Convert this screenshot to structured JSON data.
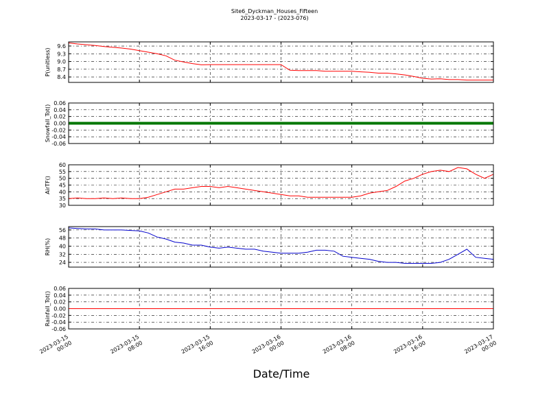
{
  "title": "Site6_Dyckman_Houses_Fifteen",
  "subtitle": "2023-03-17 - (2023-076)",
  "xlabel": "Date/Time",
  "x": [
    "2023-03-15 00:00",
    "2023-03-15 01:00",
    "2023-03-15 02:00",
    "2023-03-15 03:00",
    "2023-03-15 04:00",
    "2023-03-15 05:00",
    "2023-03-15 06:00",
    "2023-03-15 07:00",
    "2023-03-15 08:00",
    "2023-03-15 09:00",
    "2023-03-15 10:00",
    "2023-03-15 11:00",
    "2023-03-15 12:00",
    "2023-03-15 13:00",
    "2023-03-15 14:00",
    "2023-03-15 15:00",
    "2023-03-15 16:00",
    "2023-03-15 17:00",
    "2023-03-15 18:00",
    "2023-03-15 19:00",
    "2023-03-15 20:00",
    "2023-03-15 21:00",
    "2023-03-15 22:00",
    "2023-03-15 23:00",
    "2023-03-16 00:00",
    "2023-03-16 01:00",
    "2023-03-16 02:00",
    "2023-03-16 03:00",
    "2023-03-16 04:00",
    "2023-03-16 05:00",
    "2023-03-16 06:00",
    "2023-03-16 07:00",
    "2023-03-16 08:00",
    "2023-03-16 09:00",
    "2023-03-16 10:00",
    "2023-03-16 11:00",
    "2023-03-16 12:00",
    "2023-03-16 13:00",
    "2023-03-16 14:00",
    "2023-03-16 15:00",
    "2023-03-16 16:00",
    "2023-03-16 17:00",
    "2023-03-16 18:00",
    "2023-03-16 19:00",
    "2023-03-16 20:00",
    "2023-03-16 21:00",
    "2023-03-16 22:00",
    "2023-03-16 23:00",
    "2023-03-17 00:00"
  ],
  "xlim": [
    "2023-03-15 00:00",
    "2023-03-17 00:00"
  ],
  "xticks": [
    {
      "value": "2023-03-15 00:00",
      "label": [
        "2023-03-15",
        "00:00"
      ]
    },
    {
      "value": "2023-03-15 08:00",
      "label": [
        "2023-03-15",
        "08:00"
      ]
    },
    {
      "value": "2023-03-15 16:00",
      "label": [
        "2023-03-15",
        "16:00"
      ]
    },
    {
      "value": "2023-03-16 00:00",
      "label": [
        "2023-03-16",
        "00:00"
      ]
    },
    {
      "value": "2023-03-16 08:00",
      "label": [
        "2023-03-16",
        "08:00"
      ]
    },
    {
      "value": "2023-03-16 16:00",
      "label": [
        "2023-03-16",
        "16:00"
      ]
    },
    {
      "value": "2023-03-17 00:00",
      "label": [
        "2023-03-17",
        "00:00"
      ]
    }
  ],
  "grid": true,
  "chart_data": [
    {
      "type": "line",
      "ylabel": "P(unitless)",
      "ylim": [
        8.19,
        9.76
      ],
      "yticks": [
        8.4,
        8.7,
        {
          "value": 9,
          "label": "9.0"
        },
        9.3,
        9.6
      ],
      "series": [
        {
          "name": "P",
          "color": "#ff0000",
          "values": [
            9.72,
            9.68,
            9.65,
            9.62,
            9.58,
            9.55,
            9.52,
            9.48,
            9.42,
            9.36,
            9.3,
            9.22,
            9.05,
            8.98,
            8.92,
            8.87,
            8.88,
            8.88,
            8.88,
            8.88,
            8.88,
            8.88,
            8.88,
            8.88,
            8.88,
            8.66,
            8.65,
            8.65,
            8.65,
            8.62,
            8.62,
            8.62,
            8.62,
            8.6,
            8.58,
            8.55,
            8.55,
            8.52,
            8.48,
            8.42,
            8.35,
            8.32,
            8.33,
            8.3,
            8.3,
            8.28,
            8.28,
            8.28,
            8.28
          ]
        }
      ]
    },
    {
      "type": "line",
      "ylabel": "Snowfall_Tot()",
      "ylim": [
        -0.06,
        0.06
      ],
      "yticks": [
        -0.06,
        -0.04,
        -0.02,
        {
          "value": 0,
          "label": "0.00"
        },
        0.02,
        0.04,
        0.06
      ],
      "series": [
        {
          "name": "Snowfall_Tot",
          "color": "#007700",
          "width": 4,
          "values": [
            0,
            0,
            0,
            0,
            0,
            0,
            0,
            0,
            0,
            0,
            0,
            0,
            0,
            0,
            0,
            0,
            0,
            0,
            0,
            0,
            0,
            0,
            0,
            0,
            0,
            0,
            0,
            0,
            0,
            0,
            0,
            0,
            0,
            0,
            0,
            0,
            0,
            0,
            0,
            0,
            0,
            0,
            0,
            0,
            0,
            0,
            0,
            0,
            0
          ]
        }
      ]
    },
    {
      "type": "line",
      "ylabel": "AirTF()",
      "ylim": [
        30,
        60
      ],
      "yticks": [
        30,
        35,
        40,
        45,
        50,
        55,
        60
      ],
      "series": [
        {
          "name": "AirTF",
          "color": "#ff0000",
          "values": [
            35,
            35.5,
            35,
            35,
            35.5,
            35,
            35.5,
            35,
            35,
            36,
            38,
            40,
            42,
            42,
            43,
            44,
            44,
            43,
            44,
            43,
            42,
            41,
            40,
            39,
            38,
            37,
            37,
            36,
            36,
            36,
            36,
            36,
            36,
            37,
            39,
            40,
            41,
            44,
            48,
            50,
            53,
            55,
            56,
            55,
            58,
            57,
            53,
            50,
            53
          ]
        }
      ]
    },
    {
      "type": "line",
      "ylabel": "RH(%)",
      "ylim": [
        19.3,
        59.3
      ],
      "yticks": [
        24,
        32,
        40,
        48,
        56
      ],
      "series": [
        {
          "name": "RH",
          "color": "#0000cc",
          "values": [
            58,
            57.5,
            57,
            57,
            56,
            56,
            56,
            55.5,
            55,
            53,
            49,
            47,
            44,
            43,
            41,
            41,
            39,
            38,
            39,
            38,
            37,
            37,
            35,
            34,
            33,
            33,
            33,
            34,
            36,
            36,
            35,
            30,
            29,
            28,
            27,
            25,
            24,
            24,
            23,
            23,
            23,
            23,
            24,
            27,
            32,
            37,
            29,
            28,
            27
          ]
        }
      ]
    },
    {
      "type": "line",
      "ylabel": "Rainfall_Tot()",
      "ylim": [
        -0.06,
        0.06
      ],
      "yticks": [
        -0.06,
        -0.04,
        -0.02,
        {
          "value": 0,
          "label": "0.00"
        },
        0.02,
        0.04,
        0.06
      ],
      "series": [
        {
          "name": "Rainfall_Tot",
          "color": "#ff0000",
          "values": [
            0,
            0,
            0,
            0,
            0,
            0,
            0,
            0,
            0,
            0,
            0,
            0,
            0,
            0,
            0,
            0,
            0,
            0,
            0,
            0,
            0,
            0,
            0,
            0,
            0,
            0,
            0,
            0,
            0,
            0,
            0,
            0,
            0,
            0,
            0,
            0,
            0,
            0,
            0,
            0,
            0,
            0,
            0,
            0,
            0,
            0,
            0,
            0,
            0
          ]
        }
      ]
    }
  ]
}
